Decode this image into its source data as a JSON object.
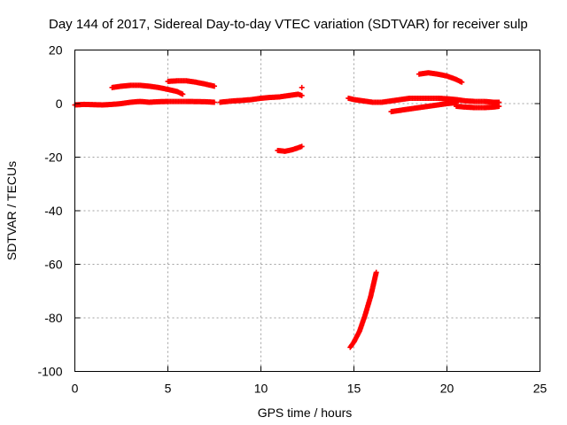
{
  "chart_data": {
    "type": "scatter",
    "title": "Day 144 of 2017, Sidereal Day-to-day VTEC variation (SDTVAR) for receiver sulp",
    "xlabel": "GPS time / hours",
    "ylabel": "SDTVAR / TECUs",
    "xlim": [
      0,
      25
    ],
    "ylim": [
      -100,
      20
    ],
    "xticks": [
      0,
      5,
      10,
      15,
      20,
      25
    ],
    "yticks": [
      20,
      0,
      -20,
      -40,
      -60,
      -80,
      -100
    ],
    "grid": true,
    "marker": "plus",
    "color": "#ff0000",
    "segments": [
      {
        "points": [
          [
            0.0,
            -0.5
          ],
          [
            0.5,
            -0.3
          ],
          [
            1.0,
            -0.4
          ],
          [
            1.5,
            -0.5
          ],
          [
            2.0,
            -0.3
          ],
          [
            2.5,
            0.0
          ],
          [
            3.0,
            0.5
          ],
          [
            3.5,
            0.8
          ],
          [
            4.0,
            0.5
          ],
          [
            4.5,
            0.7
          ],
          [
            5.0,
            0.8
          ],
          [
            6.0,
            0.8
          ],
          [
            7.0,
            0.7
          ],
          [
            7.5,
            0.5
          ]
        ]
      },
      {
        "points": [
          [
            2.0,
            6.0
          ],
          [
            2.5,
            6.5
          ],
          [
            3.0,
            6.8
          ],
          [
            3.5,
            6.8
          ],
          [
            4.0,
            6.5
          ],
          [
            4.5,
            6.0
          ],
          [
            5.0,
            5.3
          ],
          [
            5.5,
            4.5
          ],
          [
            5.8,
            3.5
          ]
        ]
      },
      {
        "points": [
          [
            5.0,
            8.3
          ],
          [
            5.5,
            8.5
          ],
          [
            6.0,
            8.5
          ],
          [
            6.5,
            8.0
          ],
          [
            7.0,
            7.3
          ],
          [
            7.5,
            6.5
          ]
        ]
      },
      {
        "points": [
          [
            7.8,
            0.5
          ],
          [
            8.5,
            1.0
          ],
          [
            9.0,
            1.2
          ],
          [
            9.5,
            1.5
          ],
          [
            10.0,
            2.0
          ],
          [
            10.5,
            2.3
          ],
          [
            11.0,
            2.5
          ],
          [
            11.5,
            3.0
          ],
          [
            12.0,
            3.5
          ],
          [
            12.2,
            3.0
          ]
        ]
      },
      {
        "points": [
          [
            12.2,
            6.0
          ]
        ]
      },
      {
        "points": [
          [
            10.9,
            -17.5
          ],
          [
            11.3,
            -17.8
          ],
          [
            11.7,
            -17.2
          ],
          [
            12.0,
            -16.5
          ],
          [
            12.2,
            -16.0
          ]
        ]
      },
      {
        "points": [
          [
            14.8,
            -91.0
          ],
          [
            15.0,
            -89.0
          ],
          [
            15.3,
            -85.0
          ],
          [
            15.6,
            -79.0
          ],
          [
            15.9,
            -72.0
          ],
          [
            16.1,
            -66.0
          ],
          [
            16.2,
            -63.0
          ]
        ]
      },
      {
        "points": [
          [
            14.7,
            2.0
          ],
          [
            15.0,
            1.5
          ],
          [
            15.5,
            1.0
          ],
          [
            16.0,
            0.5
          ],
          [
            16.5,
            0.5
          ],
          [
            17.0,
            1.0
          ],
          [
            17.5,
            1.5
          ],
          [
            18.0,
            2.0
          ],
          [
            18.5,
            2.0
          ],
          [
            19.0,
            2.0
          ],
          [
            19.5,
            2.0
          ],
          [
            20.0,
            1.8
          ],
          [
            20.5,
            1.5
          ],
          [
            21.0,
            1.0
          ],
          [
            21.5,
            0.8
          ],
          [
            22.0,
            0.8
          ],
          [
            22.5,
            0.5
          ],
          [
            22.8,
            0.5
          ]
        ]
      },
      {
        "points": [
          [
            17.0,
            -3.0
          ],
          [
            17.5,
            -2.5
          ],
          [
            18.0,
            -2.0
          ],
          [
            18.5,
            -1.5
          ],
          [
            19.0,
            -1.0
          ],
          [
            19.5,
            -0.5
          ],
          [
            20.0,
            0.0
          ],
          [
            20.5,
            0.3
          ]
        ]
      },
      {
        "points": [
          [
            20.5,
            -1.0
          ],
          [
            21.0,
            -1.3
          ],
          [
            21.5,
            -1.5
          ],
          [
            22.0,
            -1.5
          ],
          [
            22.5,
            -1.3
          ],
          [
            22.8,
            -1.0
          ]
        ]
      },
      {
        "points": [
          [
            18.5,
            11.0
          ],
          [
            19.0,
            11.5
          ],
          [
            19.5,
            11.0
          ],
          [
            20.0,
            10.3
          ],
          [
            20.5,
            9.0
          ],
          [
            20.8,
            8.0
          ]
        ]
      }
    ]
  }
}
